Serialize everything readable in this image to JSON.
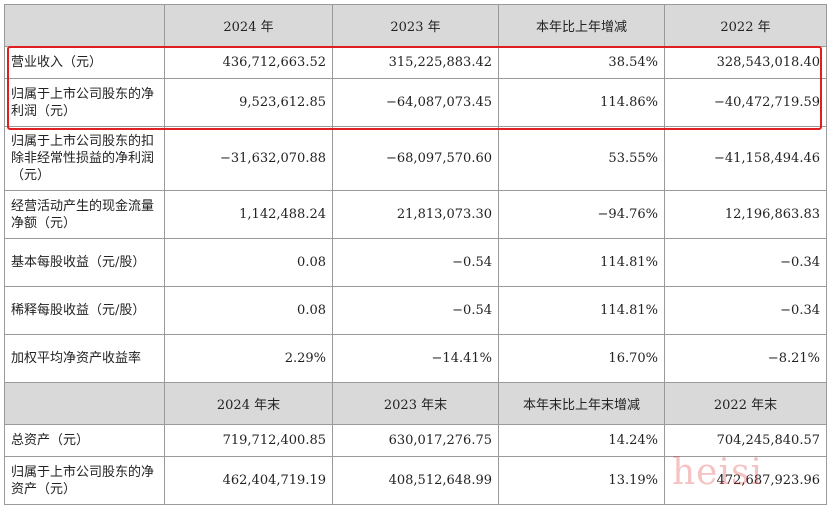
{
  "header1": [
    "",
    "2024 年",
    "2023 年",
    "本年比上年增减",
    "2022 年"
  ],
  "rows1": [
    {
      "label": "营业收入（元）",
      "values": [
        "436,712,663.52",
        "315,225,883.42",
        "38.54%",
        "328,543,018.40"
      ]
    },
    {
      "label": "归属于上市公司股东的净利润（元）",
      "values": [
        "9,523,612.85",
        "−64,087,073.45",
        "114.86%",
        "−40,472,719.59"
      ]
    },
    {
      "label": "归属于上市公司股东的扣除非经常性损益的净利润（元）",
      "values": [
        "−31,632,070.88",
        "−68,097,570.60",
        "53.55%",
        "−41,158,494.46"
      ]
    },
    {
      "label": "经营活动产生的现金流量净额（元）",
      "values": [
        "1,142,488.24",
        "21,813,073.30",
        "−94.76%",
        "12,196,863.83"
      ]
    },
    {
      "label": "基本每股收益（元/股）",
      "values": [
        "0.08",
        "−0.54",
        "114.81%",
        "−0.34"
      ]
    },
    {
      "label": "稀释每股收益（元/股）",
      "values": [
        "0.08",
        "−0.54",
        "114.81%",
        "−0.34"
      ]
    },
    {
      "label": "加权平均净资产收益率",
      "values": [
        "2.29%",
        "−14.41%",
        "16.70%",
        "−8.21%"
      ]
    }
  ],
  "header2": [
    "",
    "2024 年末",
    "2023 年末",
    "本年末比上年末增减",
    "2022 年末"
  ],
  "rows2": [
    {
      "label": "总资产（元）",
      "values": [
        "719,712,400.85",
        "630,017,276.75",
        "14.24%",
        "704,245,840.57"
      ]
    },
    {
      "label": "归属于上市公司股东的净资产（元）",
      "values": [
        "462,404,719.19",
        "408,512,648.99",
        "13.19%",
        "472,687,923.96"
      ]
    }
  ],
  "watermark": "heisi",
  "highlight_color": "#e02020"
}
